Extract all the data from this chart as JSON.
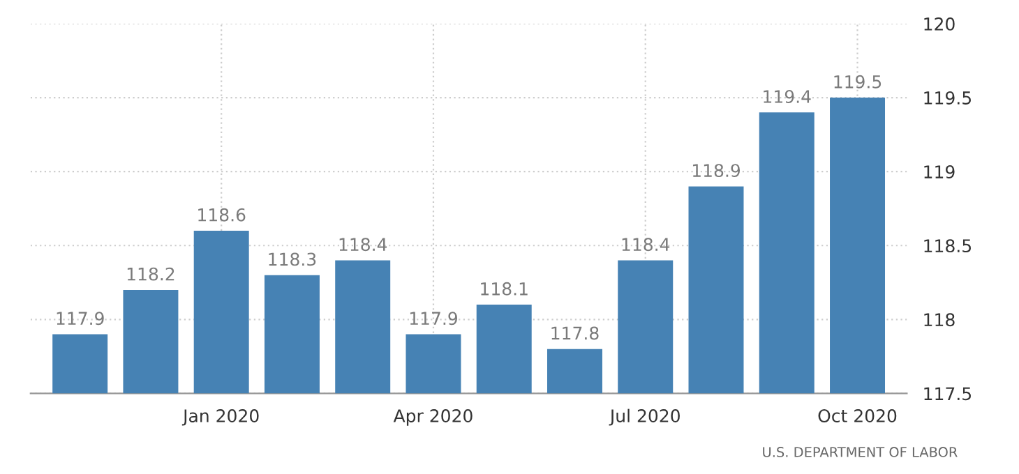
{
  "chart_data": {
    "type": "bar",
    "categories": [
      null,
      null,
      "Jan 2020",
      null,
      null,
      "Apr 2020",
      null,
      null,
      "Jul 2020",
      null,
      null,
      "Oct 2020"
    ],
    "values": [
      117.9,
      118.2,
      118.6,
      118.3,
      118.4,
      117.9,
      118.1,
      117.8,
      118.4,
      118.9,
      119.4,
      119.5
    ],
    "color": "#4682b4",
    "ylim": [
      117.5,
      120
    ],
    "yticks": [
      117.5,
      118,
      118.5,
      119,
      119.5,
      120
    ],
    "grid": true,
    "data_labels": true,
    "legend": false,
    "annotations": [
      "U.S. DEPARTMENT OF LABOR"
    ]
  }
}
